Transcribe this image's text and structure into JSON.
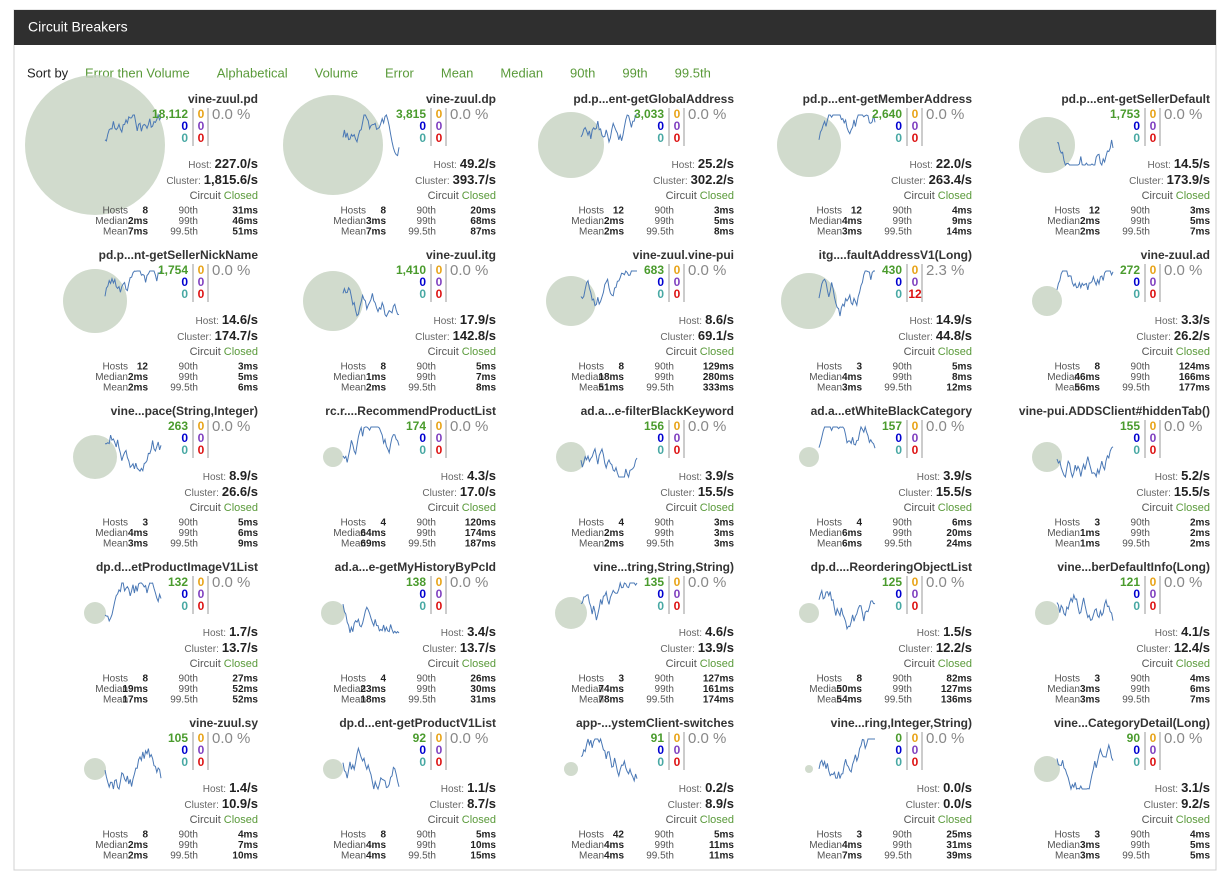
{
  "header": {
    "title": "Circuit Breakers"
  },
  "sort": {
    "label": "Sort by",
    "options": [
      "Error then Volume",
      "Alphabetical",
      "Volume",
      "Error",
      "Mean",
      "Median",
      "90th",
      "99th",
      "99.5th"
    ]
  },
  "labels": {
    "host": "Host:",
    "cluster": "Cluster:",
    "circuit": "Circuit",
    "hosts": "Hosts",
    "median": "Median",
    "mean": "Mean",
    "p90": "90th",
    "p99": "99th",
    "p995": "99.5th"
  },
  "circuits": [
    {
      "name": "vine-zuul.pd",
      "success": "18,112",
      "short": "0",
      "bad": "0",
      "timeout": "0",
      "rejected": "0",
      "failure": "0",
      "error": "0.0 %",
      "host": "227.0/s",
      "cluster": "1,815.6/s",
      "status": "Closed",
      "hosts": "8",
      "median": "2ms",
      "mean": "7ms",
      "p90": "31ms",
      "p99": "46ms",
      "p995": "51ms"
    },
    {
      "name": "vine-zuul.dp",
      "success": "3,815",
      "short": "0",
      "bad": "0",
      "timeout": "0",
      "rejected": "0",
      "failure": "0",
      "error": "0.0 %",
      "host": "49.2/s",
      "cluster": "393.7/s",
      "status": "Closed",
      "hosts": "8",
      "median": "3ms",
      "mean": "7ms",
      "p90": "20ms",
      "p99": "68ms",
      "p995": "87ms"
    },
    {
      "name": "pd.p...ent-getGlobalAddress",
      "success": "3,033",
      "short": "0",
      "bad": "0",
      "timeout": "0",
      "rejected": "0",
      "failure": "0",
      "error": "0.0 %",
      "host": "25.2/s",
      "cluster": "302.2/s",
      "status": "Closed",
      "hosts": "12",
      "median": "2ms",
      "mean": "2ms",
      "p90": "3ms",
      "p99": "5ms",
      "p995": "8ms"
    },
    {
      "name": "pd.p...ent-getMemberAddress",
      "success": "2,640",
      "short": "0",
      "bad": "0",
      "timeout": "0",
      "rejected": "0",
      "failure": "0",
      "error": "0.0 %",
      "host": "22.0/s",
      "cluster": "263.4/s",
      "status": "Closed",
      "hosts": "12",
      "median": "4ms",
      "mean": "3ms",
      "p90": "4ms",
      "p99": "9ms",
      "p995": "14ms"
    },
    {
      "name": "pd.p...ent-getSellerDefault",
      "success": "1,753",
      "short": "0",
      "bad": "0",
      "timeout": "0",
      "rejected": "0",
      "failure": "0",
      "error": "0.0 %",
      "host": "14.5/s",
      "cluster": "173.9/s",
      "status": "Closed",
      "hosts": "12",
      "median": "2ms",
      "mean": "2ms",
      "p90": "3ms",
      "p99": "5ms",
      "p995": "7ms"
    },
    {
      "name": "pd.p...nt-getSellerNickName",
      "success": "1,754",
      "short": "0",
      "bad": "0",
      "timeout": "0",
      "rejected": "0",
      "failure": "0",
      "error": "0.0 %",
      "host": "14.6/s",
      "cluster": "174.7/s",
      "status": "Closed",
      "hosts": "12",
      "median": "2ms",
      "mean": "2ms",
      "p90": "3ms",
      "p99": "5ms",
      "p995": "6ms"
    },
    {
      "name": "vine-zuul.itg",
      "success": "1,410",
      "short": "0",
      "bad": "0",
      "timeout": "0",
      "rejected": "0",
      "failure": "0",
      "error": "0.0 %",
      "host": "17.9/s",
      "cluster": "142.8/s",
      "status": "Closed",
      "hosts": "8",
      "median": "1ms",
      "mean": "2ms",
      "p90": "5ms",
      "p99": "7ms",
      "p995": "8ms"
    },
    {
      "name": "vine-zuul.vine-pui",
      "success": "683",
      "short": "0",
      "bad": "0",
      "timeout": "0",
      "rejected": "0",
      "failure": "0",
      "error": "0.0 %",
      "host": "8.6/s",
      "cluster": "69.1/s",
      "status": "Closed",
      "hosts": "8",
      "median": "18ms",
      "mean": "51ms",
      "p90": "129ms",
      "p99": "280ms",
      "p995": "333ms"
    },
    {
      "name": "itg....faultAddressV1(Long)",
      "success": "430",
      "short": "0",
      "bad": "0",
      "timeout": "0",
      "rejected": "0",
      "failure": "12",
      "error": "2.3 %",
      "host": "14.9/s",
      "cluster": "44.8/s",
      "status": "Closed",
      "hosts": "3",
      "median": "4ms",
      "mean": "3ms",
      "p90": "5ms",
      "p99": "8ms",
      "p995": "12ms"
    },
    {
      "name": "vine-zuul.ad",
      "success": "272",
      "short": "0",
      "bad": "0",
      "timeout": "0",
      "rejected": "0",
      "failure": "0",
      "error": "0.0 %",
      "host": "3.3/s",
      "cluster": "26.2/s",
      "status": "Closed",
      "hosts": "8",
      "median": "46ms",
      "mean": "56ms",
      "p90": "124ms",
      "p99": "166ms",
      "p995": "177ms"
    },
    {
      "name": "vine...pace(String,Integer)",
      "success": "263",
      "short": "0",
      "bad": "0",
      "timeout": "0",
      "rejected": "0",
      "failure": "0",
      "error": "0.0 %",
      "host": "8.9/s",
      "cluster": "26.6/s",
      "status": "Closed",
      "hosts": "3",
      "median": "4ms",
      "mean": "3ms",
      "p90": "5ms",
      "p99": "6ms",
      "p995": "9ms"
    },
    {
      "name": "rc.r....RecommendProductList",
      "success": "174",
      "short": "0",
      "bad": "0",
      "timeout": "0",
      "rejected": "0",
      "failure": "0",
      "error": "0.0 %",
      "host": "4.3/s",
      "cluster": "17.0/s",
      "status": "Closed",
      "hosts": "4",
      "median": "64ms",
      "mean": "69ms",
      "p90": "120ms",
      "p99": "174ms",
      "p995": "187ms"
    },
    {
      "name": "ad.a...e-filterBlackKeyword",
      "success": "156",
      "short": "0",
      "bad": "0",
      "timeout": "0",
      "rejected": "0",
      "failure": "0",
      "error": "0.0 %",
      "host": "3.9/s",
      "cluster": "15.5/s",
      "status": "Closed",
      "hosts": "4",
      "median": "2ms",
      "mean": "2ms",
      "p90": "3ms",
      "p99": "3ms",
      "p995": "3ms"
    },
    {
      "name": "ad.a...etWhiteBlackCategory",
      "success": "157",
      "short": "0",
      "bad": "0",
      "timeout": "0",
      "rejected": "0",
      "failure": "0",
      "error": "0.0 %",
      "host": "3.9/s",
      "cluster": "15.5/s",
      "status": "Closed",
      "hosts": "4",
      "median": "6ms",
      "mean": "6ms",
      "p90": "6ms",
      "p99": "20ms",
      "p995": "24ms"
    },
    {
      "name": "vine-pui.ADDSClient#hiddenTab()",
      "success": "155",
      "short": "0",
      "bad": "0",
      "timeout": "0",
      "rejected": "0",
      "failure": "0",
      "error": "0.0 %",
      "host": "5.2/s",
      "cluster": "15.5/s",
      "status": "Closed",
      "hosts": "3",
      "median": "1ms",
      "mean": "1ms",
      "p90": "2ms",
      "p99": "2ms",
      "p995": "2ms"
    },
    {
      "name": "dp.d...etProductImageV1List",
      "success": "132",
      "short": "0",
      "bad": "0",
      "timeout": "0",
      "rejected": "0",
      "failure": "0",
      "error": "0.0 %",
      "host": "1.7/s",
      "cluster": "13.7/s",
      "status": "Closed",
      "hosts": "8",
      "median": "19ms",
      "mean": "17ms",
      "p90": "27ms",
      "p99": "52ms",
      "p995": "52ms"
    },
    {
      "name": "ad.a...e-getMyHistoryByPcId",
      "success": "138",
      "short": "0",
      "bad": "0",
      "timeout": "0",
      "rejected": "0",
      "failure": "0",
      "error": "0.0 %",
      "host": "3.4/s",
      "cluster": "13.7/s",
      "status": "Closed",
      "hosts": "4",
      "median": "23ms",
      "mean": "18ms",
      "p90": "26ms",
      "p99": "30ms",
      "p995": "31ms"
    },
    {
      "name": "vine...tring,String,String)",
      "success": "135",
      "short": "0",
      "bad": "0",
      "timeout": "0",
      "rejected": "0",
      "failure": "0",
      "error": "0.0 %",
      "host": "4.6/s",
      "cluster": "13.9/s",
      "status": "Closed",
      "hosts": "3",
      "median": "74ms",
      "mean": "78ms",
      "p90": "127ms",
      "p99": "161ms",
      "p995": "174ms"
    },
    {
      "name": "dp.d....ReorderingObjectList",
      "success": "125",
      "short": "0",
      "bad": "0",
      "timeout": "0",
      "rejected": "0",
      "failure": "0",
      "error": "0.0 %",
      "host": "1.5/s",
      "cluster": "12.2/s",
      "status": "Closed",
      "hosts": "8",
      "median": "50ms",
      "mean": "54ms",
      "p90": "82ms",
      "p99": "127ms",
      "p995": "136ms"
    },
    {
      "name": "vine...berDefaultInfo(Long)",
      "success": "121",
      "short": "0",
      "bad": "0",
      "timeout": "0",
      "rejected": "0",
      "failure": "0",
      "error": "0.0 %",
      "host": "4.1/s",
      "cluster": "12.4/s",
      "status": "Closed",
      "hosts": "3",
      "median": "3ms",
      "mean": "3ms",
      "p90": "4ms",
      "p99": "6ms",
      "p995": "7ms"
    },
    {
      "name": "vine-zuul.sy",
      "success": "105",
      "short": "0",
      "bad": "0",
      "timeout": "0",
      "rejected": "0",
      "failure": "0",
      "error": "0.0 %",
      "host": "1.4/s",
      "cluster": "10.9/s",
      "status": "Closed",
      "hosts": "8",
      "median": "2ms",
      "mean": "2ms",
      "p90": "4ms",
      "p99": "7ms",
      "p995": "10ms"
    },
    {
      "name": "dp.d...ent-getProductV1List",
      "success": "92",
      "short": "0",
      "bad": "0",
      "timeout": "0",
      "rejected": "0",
      "failure": "0",
      "error": "0.0 %",
      "host": "1.1/s",
      "cluster": "8.7/s",
      "status": "Closed",
      "hosts": "8",
      "median": "4ms",
      "mean": "4ms",
      "p90": "5ms",
      "p99": "10ms",
      "p995": "15ms"
    },
    {
      "name": "app-...ystemClient-switches",
      "success": "91",
      "short": "0",
      "bad": "0",
      "timeout": "0",
      "rejected": "0",
      "failure": "0",
      "error": "0.0 %",
      "host": "0.2/s",
      "cluster": "8.9/s",
      "status": "Closed",
      "hosts": "42",
      "median": "4ms",
      "mean": "4ms",
      "p90": "5ms",
      "p99": "11ms",
      "p995": "11ms"
    },
    {
      "name": "vine...ring,Integer,String)",
      "success": "0",
      "short": "0",
      "bad": "0",
      "timeout": "0",
      "rejected": "0",
      "failure": "0",
      "error": "0.0 %",
      "host": "0.0/s",
      "cluster": "0.0/s",
      "status": "Closed",
      "hosts": "3",
      "median": "4ms",
      "mean": "7ms",
      "p90": "25ms",
      "p99": "31ms",
      "p995": "39ms"
    },
    {
      "name": "vine...CategoryDetail(Long)",
      "success": "90",
      "short": "0",
      "bad": "0",
      "timeout": "0",
      "rejected": "0",
      "failure": "0",
      "error": "0.0 %",
      "host": "3.1/s",
      "cluster": "9.2/s",
      "status": "Closed",
      "hosts": "3",
      "median": "3ms",
      "mean": "3ms",
      "p90": "4ms",
      "p99": "5ms",
      "p995": "5ms"
    }
  ]
}
